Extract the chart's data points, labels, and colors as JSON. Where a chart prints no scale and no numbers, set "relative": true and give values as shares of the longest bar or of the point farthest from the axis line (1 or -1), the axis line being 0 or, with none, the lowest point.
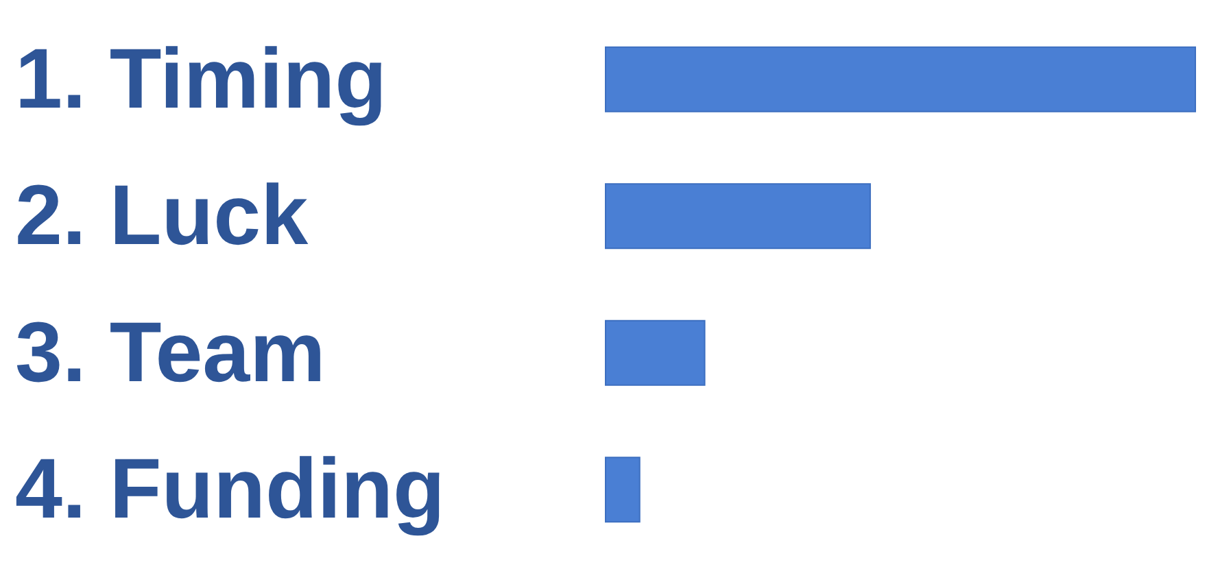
{
  "chart_data": {
    "type": "bar",
    "orientation": "horizontal",
    "relative": true,
    "categories": [
      "1. Timing",
      "2. Luck",
      "3. Team",
      "4. Funding"
    ],
    "values": [
      1,
      0.45,
      0.17,
      0.06
    ],
    "color": "#4a7fd4"
  }
}
